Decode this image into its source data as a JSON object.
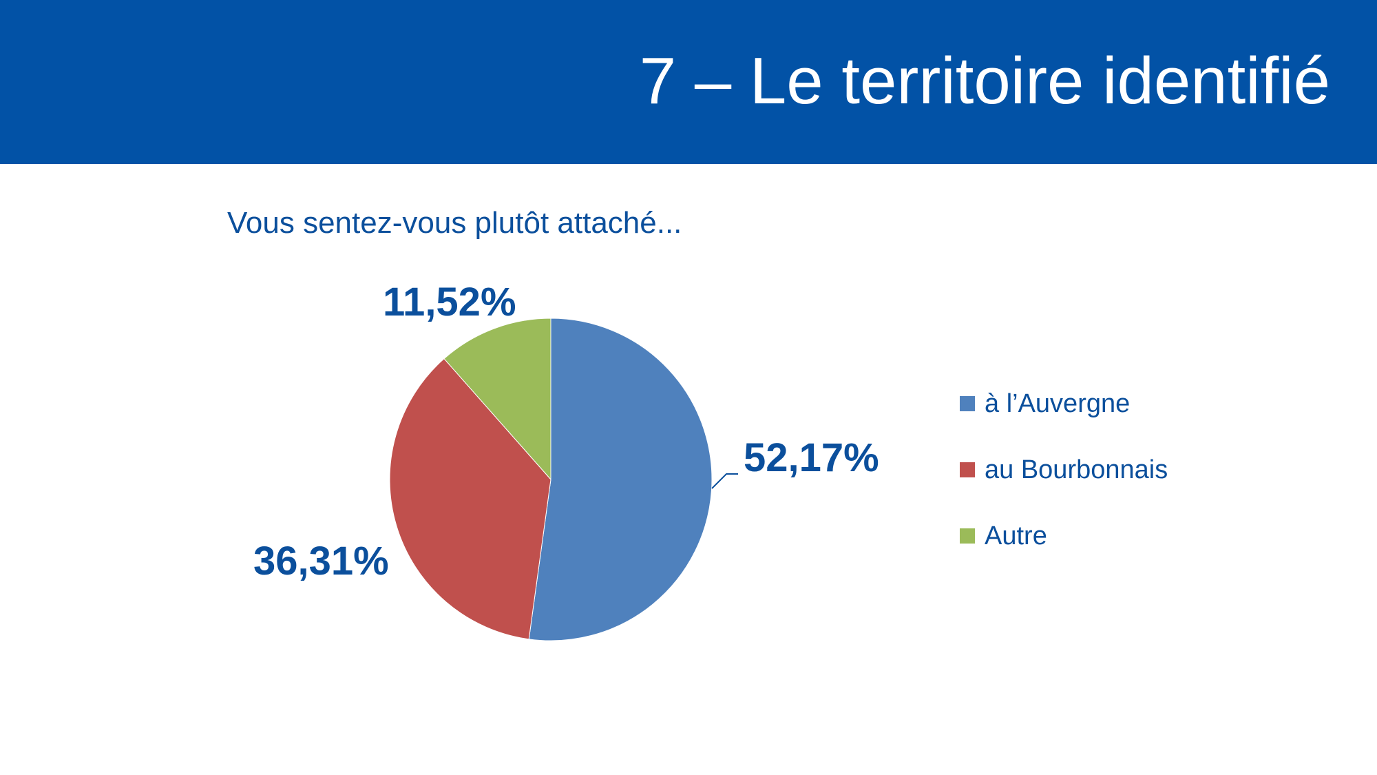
{
  "slide": {
    "title": "7 – Le territoire identifié",
    "question": "Vous sentez-vous plutôt attaché..."
  },
  "colors": {
    "header_bg": "#0252a6",
    "text_blue": "#0b4f9c",
    "series": [
      "#4f81bd",
      "#c0504d",
      "#9bbb59"
    ]
  },
  "chart_data": {
    "type": "pie",
    "title": "",
    "categories": [
      "à l’Auvergne",
      "au Bourbonnais",
      "Autre"
    ],
    "values": [
      52.17,
      36.31,
      11.52
    ],
    "labels": [
      "52,17%",
      "36,31%",
      "11,52%"
    ],
    "legend_position": "right"
  }
}
